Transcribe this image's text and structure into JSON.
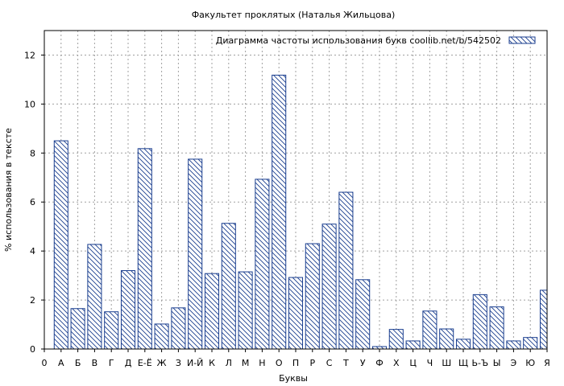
{
  "chart_data": {
    "type": "bar",
    "title": "Факультет проклятых (Наталья Жильцова)",
    "xlabel": "Буквы",
    "ylabel": "% использования в тексте",
    "legend": "Диаграмма частоты использования букв  coollib.net/b/542502",
    "legend_position": "top-right",
    "grid": true,
    "ylim": [
      0,
      13
    ],
    "yticks": [
      0,
      2,
      4,
      6,
      8,
      10,
      12
    ],
    "categories": [
      "0",
      "А",
      "Б",
      "В",
      "Г",
      "Д",
      "Е-Ё",
      "Ж",
      "З",
      "И-Й",
      "К",
      "Л",
      "М",
      "Н",
      "О",
      "П",
      "Р",
      "С",
      "Т",
      "У",
      "Ф",
      "Х",
      "Ц",
      "Ч",
      "Ш",
      "Щ",
      "Ь-Ъ",
      "Ы",
      "Э",
      "Ю",
      "Я"
    ],
    "values": [
      null,
      8.5,
      1.65,
      4.27,
      1.52,
      3.2,
      8.18,
      1.02,
      1.68,
      7.75,
      3.08,
      5.13,
      3.15,
      6.93,
      11.18,
      2.92,
      4.3,
      5.1,
      6.4,
      2.83,
      0.1,
      0.8,
      0.33,
      1.55,
      0.82,
      0.4,
      2.22,
      1.72,
      0.33,
      0.47,
      2.4
    ],
    "colors": {
      "bar_stroke": "#1a3e8f"
    }
  }
}
